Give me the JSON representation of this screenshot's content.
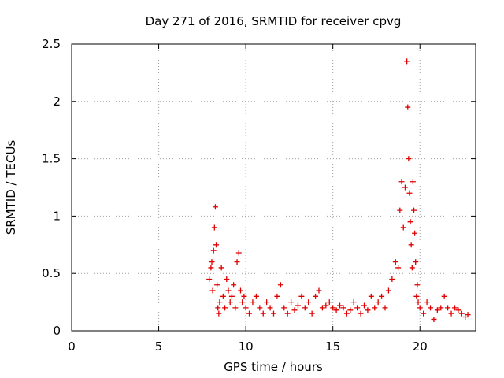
{
  "chart_data": {
    "type": "scatter",
    "title": "Day 271 of 2016, SRMTID for receiver cpvg",
    "xlabel": "GPS time / hours",
    "ylabel": "SRMTID / TECUs",
    "xlim": [
      0,
      23.2
    ],
    "ylim": [
      0,
      2.5
    ],
    "grid": true,
    "x_ticks": [
      0,
      5,
      10,
      15,
      20
    ],
    "x_tick_labels": [
      "0",
      "5",
      "10",
      "15",
      "20"
    ],
    "y_ticks": [
      0,
      0.5,
      1,
      1.5,
      2,
      2.5
    ],
    "y_tick_labels": [
      "0",
      "0.5",
      "1",
      "1.5",
      "2",
      "2.5"
    ],
    "marker": "+",
    "series_color": "#e00000",
    "series": [
      {
        "name": "SRMTID",
        "x": [
          7.9,
          8.0,
          8.05,
          8.1,
          8.15,
          8.2,
          8.25,
          8.3,
          8.35,
          8.4,
          8.45,
          8.5,
          8.6,
          8.7,
          8.8,
          8.9,
          9.0,
          9.1,
          9.2,
          9.3,
          9.4,
          9.5,
          9.6,
          9.7,
          9.8,
          9.9,
          10.0,
          10.2,
          10.4,
          10.6,
          10.8,
          11.0,
          11.2,
          11.4,
          11.6,
          11.8,
          12.0,
          12.2,
          12.4,
          12.6,
          12.8,
          13.0,
          13.2,
          13.4,
          13.6,
          13.8,
          14.0,
          14.2,
          14.4,
          14.6,
          14.8,
          15.0,
          15.2,
          15.4,
          15.6,
          15.8,
          16.0,
          16.2,
          16.4,
          16.6,
          16.8,
          17.0,
          17.2,
          17.4,
          17.6,
          17.8,
          18.0,
          18.2,
          18.4,
          18.6,
          18.75,
          18.85,
          18.95,
          19.05,
          19.15,
          19.25,
          19.3,
          19.35,
          19.4,
          19.45,
          19.5,
          19.55,
          19.6,
          19.65,
          19.7,
          19.75,
          19.8,
          19.85,
          19.9,
          20.0,
          20.2,
          20.4,
          20.6,
          20.8,
          21.0,
          21.2,
          21.4,
          21.6,
          21.8,
          22.0,
          22.2,
          22.4,
          22.6,
          22.75
        ],
        "values": [
          0.45,
          0.55,
          0.6,
          0.35,
          0.7,
          0.9,
          1.08,
          0.75,
          0.4,
          0.2,
          0.15,
          0.25,
          0.55,
          0.3,
          0.2,
          0.45,
          0.35,
          0.25,
          0.3,
          0.4,
          0.2,
          0.6,
          0.68,
          0.35,
          0.25,
          0.3,
          0.2,
          0.15,
          0.25,
          0.3,
          0.2,
          0.15,
          0.25,
          0.2,
          0.15,
          0.3,
          0.4,
          0.2,
          0.15,
          0.25,
          0.18,
          0.22,
          0.3,
          0.2,
          0.25,
          0.15,
          0.3,
          0.35,
          0.2,
          0.22,
          0.25,
          0.2,
          0.18,
          0.22,
          0.2,
          0.15,
          0.18,
          0.25,
          0.2,
          0.15,
          0.22,
          0.18,
          0.3,
          0.2,
          0.25,
          0.3,
          0.2,
          0.35,
          0.45,
          0.6,
          0.55,
          1.05,
          1.3,
          0.9,
          1.25,
          2.35,
          1.95,
          1.5,
          1.2,
          0.95,
          0.75,
          0.55,
          1.3,
          1.05,
          0.85,
          0.6,
          0.3,
          0.4,
          0.25,
          0.2,
          0.15,
          0.25,
          0.2,
          0.1,
          0.18,
          0.2,
          0.3,
          0.2,
          0.15,
          0.2,
          0.18,
          0.15,
          0.12,
          0.14
        ]
      }
    ]
  }
}
